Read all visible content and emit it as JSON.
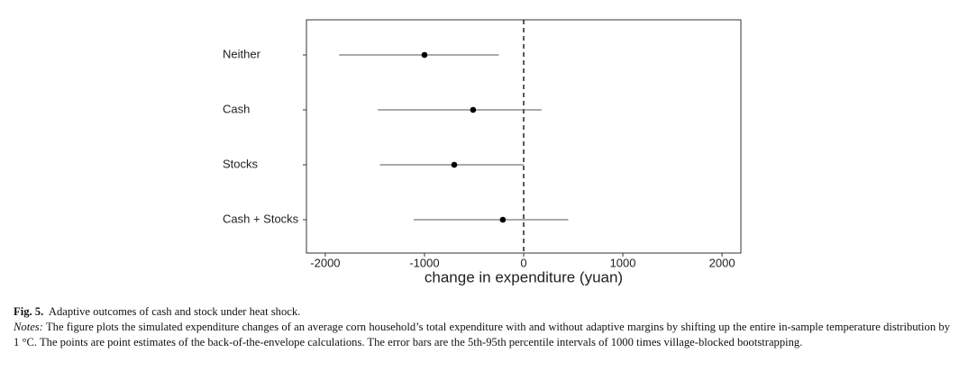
{
  "chart_data": {
    "type": "dot",
    "xlabel": "change in expenditure (yuan)",
    "categories": [
      "Neither",
      "Cash",
      "Stocks",
      "Cash + Stocks"
    ],
    "series": [
      {
        "name": "point estimate",
        "color": "#000000",
        "values": [
          -1000,
          -510,
          -700,
          -210
        ],
        "low": [
          -1860,
          -1470,
          -1450,
          -1110
        ],
        "high": [
          -250,
          180,
          0,
          450
        ]
      }
    ],
    "xlim": [
      -2190,
      2190
    ],
    "xticks": [
      -2000,
      -1000,
      0,
      1000,
      2000
    ],
    "reference_line": 0,
    "grid": false
  },
  "caption": {
    "label": "Fig. 5.",
    "title": "Adaptive outcomes of cash and stock under heat shock.",
    "notes_label": "Notes:",
    "notes": "The figure plots the simulated expenditure changes of an average corn household’s total expenditure with and without adaptive margins by shifting up the entire in-sample temperature distribution by 1 °C. The points are point estimates of the back-of-the-envelope calculations. The error bars are the 5th-95th percentile intervals of 1000 times village-blocked bootstrapping."
  }
}
